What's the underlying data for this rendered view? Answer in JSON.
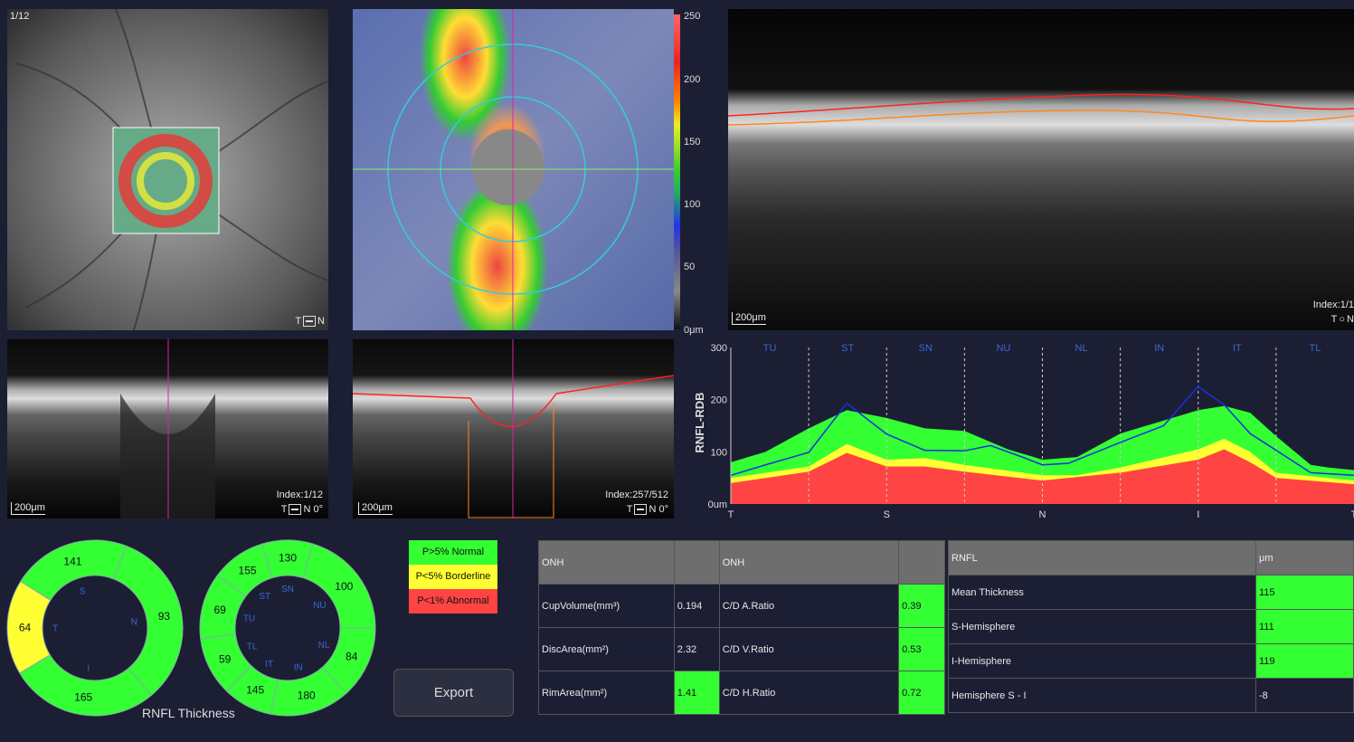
{
  "fundus": {
    "frame_label": "1/12",
    "orientation": {
      "left": "T",
      "right": "N"
    }
  },
  "heatmap": {
    "colorbar_ticks": [
      "250",
      "200",
      "150",
      "100",
      "50",
      "0μm"
    ]
  },
  "oct_main": {
    "scale": "200μm",
    "index": "Index:1/1",
    "orientation": {
      "left": "T",
      "right": "N"
    }
  },
  "bscan1": {
    "scale": "200μm",
    "index": "Index:1/12",
    "orientation": {
      "left": "T",
      "right": "N 0°"
    }
  },
  "bscan2": {
    "scale": "200μm",
    "index": "Index:257/512",
    "orientation": {
      "left": "T",
      "right": "N 0°"
    }
  },
  "chart_data": {
    "type": "area",
    "ylabel": "RNFL-RDB",
    "ylim": [
      0,
      300
    ],
    "xlim": [
      0,
      360
    ],
    "y_ticks": [
      "300",
      "200",
      "100",
      "0um"
    ],
    "x_labels": [
      "T",
      "S",
      "N",
      "I",
      "T"
    ],
    "sector_labels": [
      "TU",
      "ST",
      "SN",
      "NU",
      "NL",
      "IN",
      "IT",
      "TL"
    ],
    "colors": {
      "normal": "#33ff33",
      "borderline": "#ffff33",
      "abnormal": "#ff4444",
      "measured": "#1a2fe0"
    },
    "bands": {
      "normal_upper": [
        [
          0,
          80
        ],
        [
          20,
          100
        ],
        [
          45,
          145
        ],
        [
          67,
          180
        ],
        [
          90,
          165
        ],
        [
          112,
          145
        ],
        [
          135,
          140
        ],
        [
          160,
          105
        ],
        [
          180,
          85
        ],
        [
          200,
          90
        ],
        [
          225,
          135
        ],
        [
          270,
          180
        ],
        [
          285,
          188
        ],
        [
          300,
          175
        ],
        [
          315,
          130
        ],
        [
          335,
          75
        ],
        [
          345,
          70
        ],
        [
          360,
          65
        ]
      ],
      "borderline_upper": [
        [
          0,
          50
        ],
        [
          45,
          72
        ],
        [
          67,
          115
        ],
        [
          90,
          85
        ],
        [
          112,
          88
        ],
        [
          135,
          75
        ],
        [
          180,
          55
        ],
        [
          200,
          55
        ],
        [
          225,
          70
        ],
        [
          270,
          105
        ],
        [
          285,
          125
        ],
        [
          300,
          100
        ],
        [
          315,
          60
        ],
        [
          360,
          45
        ]
      ],
      "abnormal_upper": [
        [
          0,
          40
        ],
        [
          45,
          62
        ],
        [
          67,
          98
        ],
        [
          90,
          72
        ],
        [
          112,
          72
        ],
        [
          135,
          62
        ],
        [
          180,
          45
        ],
        [
          225,
          60
        ],
        [
          270,
          85
        ],
        [
          285,
          105
        ],
        [
          300,
          80
        ],
        [
          315,
          50
        ],
        [
          360,
          38
        ]
      ]
    },
    "measured": [
      [
        0,
        55
      ],
      [
        20,
        75
      ],
      [
        45,
        99
      ],
      [
        67,
        193
      ],
      [
        90,
        134
      ],
      [
        112,
        103
      ],
      [
        135,
        102
      ],
      [
        150,
        112
      ],
      [
        170,
        88
      ],
      [
        180,
        75
      ],
      [
        195,
        78
      ],
      [
        225,
        118
      ],
      [
        250,
        150
      ],
      [
        270,
        225
      ],
      [
        285,
        190
      ],
      [
        300,
        135
      ],
      [
        315,
        103
      ],
      [
        335,
        60
      ],
      [
        360,
        55
      ]
    ]
  },
  "rnfl_thickness": {
    "title": "RNFL Thickness",
    "quadrants": [
      {
        "name": "S",
        "value": "141",
        "status": "normal"
      },
      {
        "name": "T",
        "value": "64",
        "status": "borderline"
      },
      {
        "name": "I",
        "value": "165",
        "status": "normal"
      },
      {
        "name": "N",
        "value": "93",
        "status": "normal"
      }
    ],
    "clock": [
      {
        "name": "SN",
        "value": "130",
        "status": "normal"
      },
      {
        "name": "ST",
        "value": "155",
        "status": "normal"
      },
      {
        "name": "TU",
        "value": "69",
        "status": "normal"
      },
      {
        "name": "TL",
        "value": "59",
        "status": "normal"
      },
      {
        "name": "IT",
        "value": "145",
        "status": "normal"
      },
      {
        "name": "IN",
        "value": "180",
        "status": "normal"
      },
      {
        "name": "NL",
        "value": "84",
        "status": "normal"
      },
      {
        "name": "NU",
        "value": "100",
        "status": "normal"
      }
    ]
  },
  "legend": {
    "normal": "P>5% Normal",
    "borderline": "P<5% Borderline",
    "abnormal": "P<1% Abnormal"
  },
  "export_label": "Export",
  "onh_table": {
    "header": [
      "ONH",
      "",
      "ONH",
      ""
    ],
    "rows": [
      [
        "CupVolume(mm³)",
        "0.194",
        "C/D A.Ratio",
        "0.39"
      ],
      [
        "DiscArea(mm²)",
        "2.32",
        "C/D V.Ratio",
        "0.53"
      ],
      [
        "RimArea(mm²)",
        "1.41",
        "C/D H.Ratio",
        "0.72"
      ]
    ]
  },
  "rnfl_table": {
    "header": [
      "RNFL",
      "μm"
    ],
    "rows": [
      [
        "Mean Thickness",
        "115"
      ],
      [
        "S-Hemisphere",
        "111"
      ],
      [
        "I-Hemisphere",
        "119"
      ],
      [
        "Hemisphere S - I",
        "-8"
      ]
    ]
  }
}
